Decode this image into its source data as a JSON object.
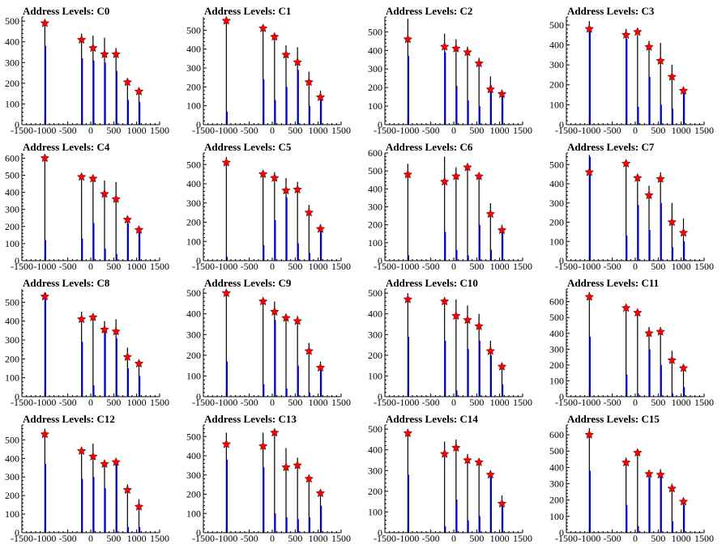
{
  "chart_data": {
    "type": "bar",
    "grid_layout": {
      "rows": 4,
      "cols": 4
    },
    "xlim": [
      -1500,
      1500
    ],
    "x_ticks": [
      -1500,
      -1000,
      -500,
      0,
      500,
      1000,
      1500
    ],
    "x_tick_labels": [
      "-1500",
      "-1000",
      "-500",
      "0",
      "500",
      "1000",
      "1500"
    ],
    "marker_x": [
      -1000,
      -200,
      50,
      300,
      550,
      800,
      1050
    ],
    "colors": {
      "bar": "#0000ff",
      "black_bar": "#000000",
      "marker": "#ff0000"
    },
    "panels": [
      {
        "title": "Address Levels: C0",
        "ylim": [
          0,
          520
        ],
        "y_ticks": [
          0,
          100,
          200,
          300,
          400,
          500
        ],
        "y_tick_labels": [
          "0",
          "100",
          "200",
          "300",
          "400",
          "500"
        ],
        "black_peaks": [
          500,
          440,
          430,
          420,
          370,
          220,
          180
        ],
        "blue_peaks": [
          380,
          320,
          310,
          300,
          260,
          120,
          110
        ],
        "markers": [
          490,
          410,
          370,
          340,
          340,
          205,
          160
        ]
      },
      {
        "title": "Address Levels: C1",
        "ylim": [
          0,
          570
        ],
        "y_ticks": [
          0,
          100,
          200,
          300,
          400,
          500
        ],
        "y_tick_labels": [
          "0",
          "100",
          "200",
          "300",
          "400",
          "500"
        ],
        "black_peaks": [
          560,
          510,
          470,
          420,
          410,
          280,
          180
        ],
        "blue_peaks": [
          70,
          240,
          130,
          200,
          290,
          100,
          140
        ],
        "markers": [
          550,
          510,
          465,
          370,
          330,
          225,
          145
        ]
      },
      {
        "title": "Address Levels: C2",
        "ylim": [
          0,
          580
        ],
        "y_ticks": [
          0,
          100,
          200,
          300,
          400,
          500
        ],
        "y_tick_labels": [
          "0",
          "100",
          "200",
          "300",
          "400",
          "500"
        ],
        "black_peaks": [
          570,
          490,
          460,
          420,
          360,
          260,
          180
        ],
        "blue_peaks": [
          370,
          390,
          210,
          130,
          100,
          210,
          170
        ],
        "markers": [
          460,
          420,
          410,
          390,
          330,
          190,
          165
        ]
      },
      {
        "title": "Address Levels: C3",
        "ylim": [
          0,
          540
        ],
        "y_ticks": [
          0,
          100,
          200,
          300,
          400,
          500
        ],
        "y_tick_labels": [
          "0",
          "100",
          "200",
          "300",
          "400",
          "500"
        ],
        "black_peaks": [
          520,
          480,
          450,
          420,
          410,
          300,
          190
        ],
        "blue_peaks": [
          480,
          430,
          90,
          240,
          100,
          80,
          160
        ],
        "markers": [
          480,
          450,
          465,
          390,
          320,
          240,
          170
        ]
      },
      {
        "title": "Address Levels: C4",
        "ylim": [
          0,
          630
        ],
        "y_ticks": [
          0,
          100,
          200,
          300,
          400,
          500,
          600
        ],
        "y_tick_labels": [
          "0",
          "100",
          "200",
          "300",
          "400",
          "500",
          "600"
        ],
        "black_peaks": [
          620,
          500,
          490,
          470,
          460,
          260,
          200
        ],
        "blue_peaks": [
          120,
          130,
          220,
          70,
          40,
          220,
          190
        ],
        "markers": [
          600,
          490,
          480,
          390,
          360,
          240,
          180
        ]
      },
      {
        "title": "Address Levels: C5",
        "ylim": [
          0,
          560
        ],
        "y_ticks": [
          0,
          100,
          200,
          300,
          400,
          500
        ],
        "y_tick_labels": [
          "0",
          "100",
          "200",
          "300",
          "400",
          "500"
        ],
        "black_peaks": [
          540,
          470,
          460,
          430,
          410,
          290,
          190
        ],
        "blue_peaks": [
          20,
          80,
          210,
          330,
          90,
          40,
          160
        ],
        "markers": [
          510,
          450,
          430,
          365,
          370,
          250,
          165
        ]
      },
      {
        "title": "Address Levels: C6",
        "ylim": [
          0,
          600
        ],
        "y_ticks": [
          0,
          100,
          200,
          300,
          400,
          500,
          600
        ],
        "y_tick_labels": [
          "0",
          "100",
          "200",
          "300",
          "400",
          "500",
          "600"
        ],
        "black_peaks": [
          540,
          580,
          520,
          530,
          480,
          320,
          200
        ],
        "blue_peaks": [
          30,
          160,
          60,
          30,
          200,
          60,
          180
        ],
        "markers": [
          480,
          440,
          470,
          520,
          470,
          260,
          170
        ]
      },
      {
        "title": "Address Levels: C7",
        "ylim": [
          0,
          560
        ],
        "y_ticks": [
          0,
          100,
          200,
          300,
          400,
          500
        ],
        "y_tick_labels": [
          "0",
          "100",
          "200",
          "300",
          "400",
          "500"
        ],
        "black_peaks": [
          550,
          520,
          450,
          390,
          460,
          300,
          220
        ],
        "blue_peaks": [
          540,
          130,
          290,
          160,
          300,
          70,
          100
        ],
        "markers": [
          460,
          505,
          430,
          340,
          425,
          200,
          145
        ]
      },
      {
        "title": "Address Levels: C8",
        "ylim": [
          0,
          570
        ],
        "y_ticks": [
          0,
          100,
          200,
          300,
          400,
          500
        ],
        "y_tick_labels": [
          "0",
          "100",
          "200",
          "300",
          "400",
          "500"
        ],
        "black_peaks": [
          550,
          450,
          420,
          400,
          410,
          260,
          180
        ],
        "blue_peaks": [
          550,
          290,
          60,
          340,
          310,
          150,
          110
        ],
        "markers": [
          530,
          410,
          420,
          355,
          345,
          210,
          175
        ]
      },
      {
        "title": "Address Levels: C9",
        "ylim": [
          0,
          520
        ],
        "y_ticks": [
          0,
          100,
          200,
          300,
          400,
          500
        ],
        "y_tick_labels": [
          "0",
          "100",
          "200",
          "300",
          "400",
          "500"
        ],
        "black_peaks": [
          510,
          470,
          460,
          400,
          390,
          260,
          170
        ],
        "blue_peaks": [
          170,
          60,
          370,
          40,
          150,
          20,
          130
        ],
        "markers": [
          500,
          460,
          410,
          380,
          365,
          220,
          140
        ]
      },
      {
        "title": "Address Levels: C10",
        "ylim": [
          0,
          520
        ],
        "y_ticks": [
          0,
          100,
          200,
          300,
          400,
          500
        ],
        "y_tick_labels": [
          "0",
          "100",
          "200",
          "300",
          "400",
          "500"
        ],
        "black_peaks": [
          500,
          470,
          470,
          440,
          400,
          270,
          160
        ],
        "blue_peaks": [
          290,
          270,
          30,
          230,
          270,
          200,
          60
        ],
        "markers": [
          470,
          460,
          390,
          370,
          340,
          220,
          145
        ]
      },
      {
        "title": "Address Levels: C11",
        "ylim": [
          0,
          680
        ],
        "y_ticks": [
          0,
          100,
          200,
          300,
          400,
          500,
          600
        ],
        "y_tick_labels": [
          "0",
          "100",
          "200",
          "300",
          "400",
          "500",
          "600"
        ],
        "black_peaks": [
          660,
          580,
          540,
          440,
          440,
          290,
          200
        ],
        "blue_peaks": [
          380,
          140,
          20,
          300,
          200,
          20,
          60
        ],
        "markers": [
          630,
          560,
          530,
          400,
          410,
          230,
          180
        ]
      },
      {
        "title": "Address Levels: C12",
        "ylim": [
          0,
          580
        ],
        "y_ticks": [
          0,
          100,
          200,
          300,
          400,
          500
        ],
        "y_tick_labels": [
          "0",
          "100",
          "200",
          "300",
          "400",
          "500"
        ],
        "black_peaks": [
          560,
          460,
          480,
          390,
          400,
          260,
          180
        ],
        "blue_peaks": [
          370,
          290,
          300,
          240,
          370,
          30,
          30
        ],
        "markers": [
          530,
          440,
          410,
          370,
          380,
          230,
          140
        ]
      },
      {
        "title": "Address Levels: C13",
        "ylim": [
          0,
          560
        ],
        "y_ticks": [
          0,
          100,
          200,
          300,
          400,
          500
        ],
        "y_tick_labels": [
          "0",
          "100",
          "200",
          "300",
          "400",
          "500"
        ],
        "black_peaks": [
          520,
          520,
          540,
          440,
          390,
          300,
          220
        ],
        "blue_peaks": [
          380,
          340,
          100,
          80,
          70,
          80,
          140
        ],
        "markers": [
          460,
          450,
          520,
          340,
          350,
          280,
          205
        ]
      },
      {
        "title": "Address Levels: C14",
        "ylim": [
          0,
          520
        ],
        "y_ticks": [
          0,
          100,
          200,
          300,
          400,
          500
        ],
        "y_tick_labels": [
          "0",
          "100",
          "200",
          "300",
          "400",
          "500"
        ],
        "black_peaks": [
          500,
          440,
          450,
          380,
          360,
          300,
          180
        ],
        "blue_peaks": [
          280,
          30,
          160,
          60,
          80,
          270,
          150
        ],
        "markers": [
          480,
          380,
          410,
          350,
          340,
          280,
          140
        ]
      },
      {
        "title": "Address Levels: C15",
        "ylim": [
          0,
          660
        ],
        "y_ticks": [
          0,
          100,
          200,
          300,
          400,
          500,
          600
        ],
        "y_tick_labels": [
          "0",
          "100",
          "200",
          "300",
          "400",
          "500",
          "600"
        ],
        "black_peaks": [
          640,
          460,
          500,
          380,
          390,
          300,
          210
        ],
        "blue_peaks": [
          380,
          170,
          40,
          340,
          360,
          70,
          170
        ],
        "markers": [
          600,
          430,
          490,
          360,
          355,
          270,
          190
        ]
      }
    ]
  }
}
